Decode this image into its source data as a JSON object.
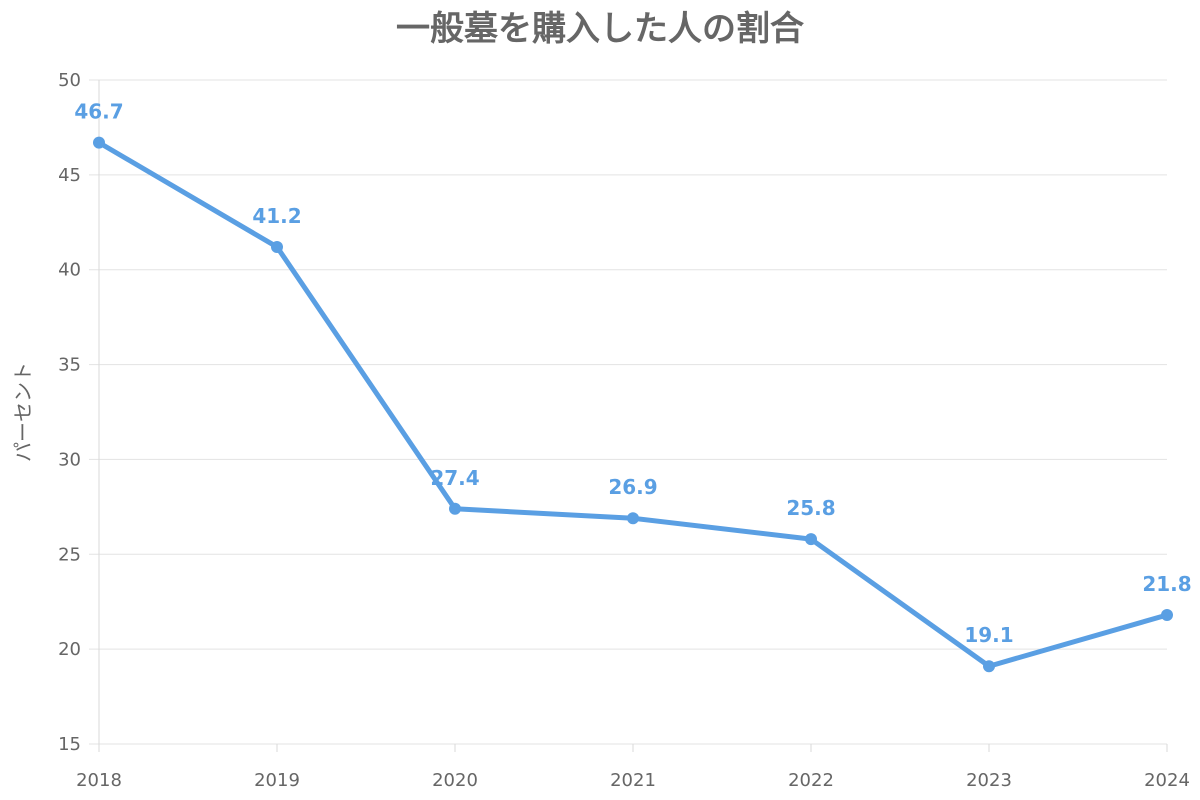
{
  "chart_data": {
    "type": "line",
    "title": "一般墓を購入した人の割合",
    "xlabel": "",
    "ylabel": "パーセント",
    "categories": [
      "2018",
      "2019",
      "2020",
      "2021",
      "2022",
      "2023",
      "2024"
    ],
    "series": [
      {
        "values": [
          46.7,
          41.2,
          27.4,
          26.9,
          25.8,
          19.1,
          21.8
        ],
        "color": "#5a9fe3"
      }
    ],
    "ylim": [
      15,
      50
    ],
    "yticks": [
      15,
      20,
      25,
      30,
      35,
      40,
      45,
      50
    ],
    "grid": true,
    "legend": "none",
    "data_labels": true
  }
}
